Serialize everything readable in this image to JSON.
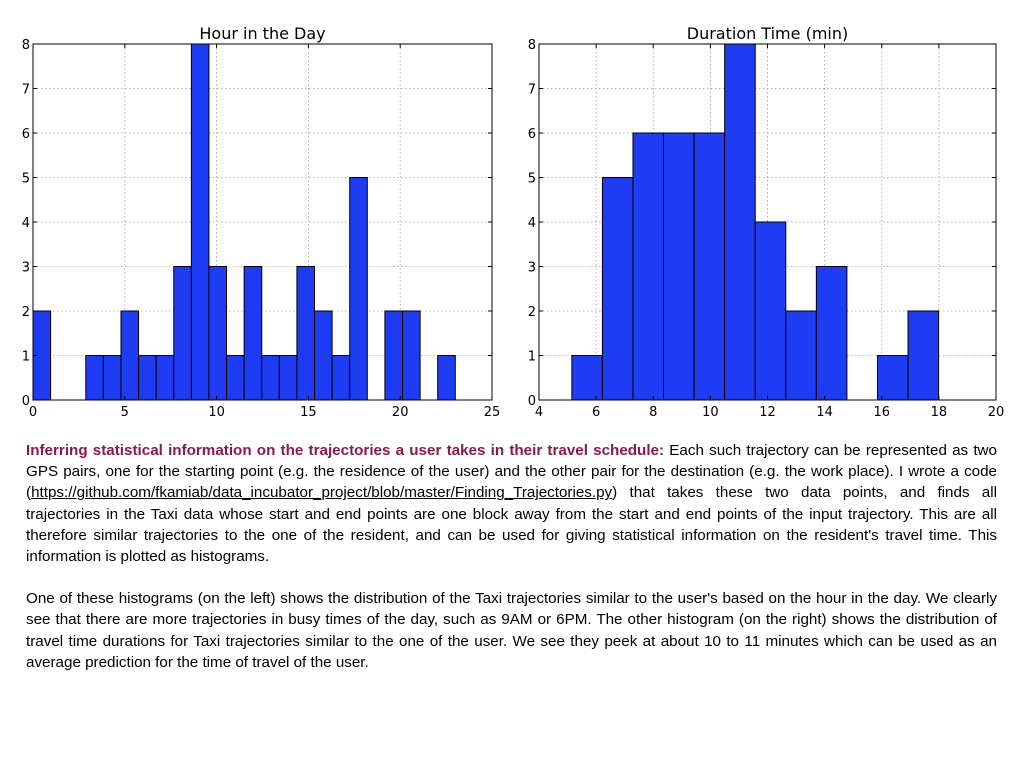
{
  "chart_data": [
    {
      "type": "bar",
      "subtype": "histogram",
      "title": "Hour in the Day",
      "xlabel": "",
      "ylabel": "",
      "xlim": [
        0,
        25
      ],
      "ylim": [
        0,
        8
      ],
      "xticks": [
        0,
        5,
        10,
        15,
        20,
        25
      ],
      "yticks": [
        0,
        1,
        2,
        3,
        4,
        5,
        6,
        7,
        8
      ],
      "grid": true,
      "bin_width": 0.958,
      "bins": [
        {
          "start": 0.0,
          "value": 2
        },
        {
          "start": 0.958,
          "value": 0
        },
        {
          "start": 1.917,
          "value": 0
        },
        {
          "start": 2.875,
          "value": 1
        },
        {
          "start": 3.833,
          "value": 1
        },
        {
          "start": 4.792,
          "value": 2
        },
        {
          "start": 5.75,
          "value": 1
        },
        {
          "start": 6.708,
          "value": 1
        },
        {
          "start": 7.667,
          "value": 3
        },
        {
          "start": 8.625,
          "value": 8
        },
        {
          "start": 9.583,
          "value": 3
        },
        {
          "start": 10.542,
          "value": 1
        },
        {
          "start": 11.5,
          "value": 3
        },
        {
          "start": 12.458,
          "value": 1
        },
        {
          "start": 13.417,
          "value": 1
        },
        {
          "start": 14.375,
          "value": 3
        },
        {
          "start": 15.333,
          "value": 2
        },
        {
          "start": 16.292,
          "value": 1
        },
        {
          "start": 17.25,
          "value": 5
        },
        {
          "start": 18.208,
          "value": 0
        },
        {
          "start": 19.167,
          "value": 2
        },
        {
          "start": 20.125,
          "value": 2
        },
        {
          "start": 21.083,
          "value": 0
        },
        {
          "start": 22.042,
          "value": 1
        }
      ]
    },
    {
      "type": "bar",
      "subtype": "histogram",
      "title": "Duration Time (min)",
      "xlabel": "",
      "ylabel": "",
      "xlim": [
        4,
        20
      ],
      "ylim": [
        0,
        8
      ],
      "xticks": [
        4,
        6,
        8,
        10,
        12,
        14,
        16,
        18,
        20
      ],
      "yticks": [
        0,
        1,
        2,
        3,
        4,
        5,
        6,
        7,
        8
      ],
      "grid": true,
      "bin_width": 1.07,
      "bins": [
        {
          "start": 5.15,
          "value": 1
        },
        {
          "start": 6.22,
          "value": 5
        },
        {
          "start": 7.29,
          "value": 6
        },
        {
          "start": 8.36,
          "value": 6
        },
        {
          "start": 9.43,
          "value": 6
        },
        {
          "start": 10.5,
          "value": 8
        },
        {
          "start": 11.57,
          "value": 4
        },
        {
          "start": 12.64,
          "value": 2
        },
        {
          "start": 13.71,
          "value": 3
        },
        {
          "start": 14.78,
          "value": 0
        },
        {
          "start": 15.85,
          "value": 1
        },
        {
          "start": 16.92,
          "value": 2
        }
      ]
    }
  ],
  "description": {
    "heading": "Inferring statistical information on the trajectories a user takes in their travel schedule:",
    "para1_a": "Each such trajectory can be represented as two GPS pairs, one for the starting point (e.g. the residence of the user) and the other pair for the destination (e.g. the work place). I wrote a code (",
    "link": "https://github.com/fkamiab/data_incubator_project/blob/master/Finding_Trajectories.py",
    "para1_b": ") that takes these two data points, and finds all trajectories in the Taxi data whose start and end points are one block away from the start and end points of the input trajectory.  This are all therefore similar trajectories to the one of the resident, and can be used for giving statistical information on the resident's travel time. This information is plotted as histograms.",
    "para2": "One of these histograms (on the left) shows the distribution of the Taxi trajectories similar to the user's based on the hour in the day.  We clearly see that there are more trajectories in busy times of the day, such as 9AM or 6PM.  The other histogram (on the right) shows the distribution of travel time durations for Taxi trajectories similar to the one of the user. We see they peek at about 10 to 11 minutes which can be used as an average prediction for the time of travel of the user."
  },
  "colors": {
    "bar_fill": "#1f3cf5",
    "heading": "#8b1a4a"
  }
}
